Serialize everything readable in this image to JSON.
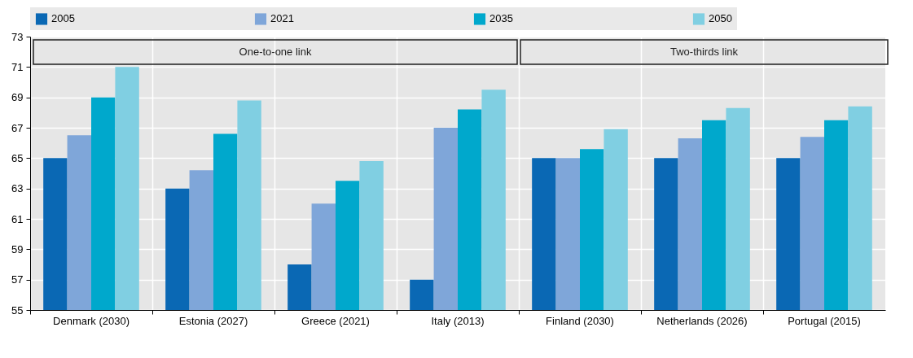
{
  "chart_data": {
    "type": "bar",
    "categories": [
      "Denmark (2030)",
      "Estonia (2027)",
      "Greece (2021)",
      "Italy (2013)",
      "Finland (2030)",
      "Netherlands (2026)",
      "Portugal (2015)"
    ],
    "series": [
      {
        "name": "2005",
        "color": "#0a68b4",
        "values": [
          65,
          63,
          58,
          57,
          65,
          65,
          65
        ]
      },
      {
        "name": "2021",
        "color": "#7fa6d9",
        "values": [
          66.5,
          64.2,
          62,
          67,
          65,
          66.3,
          66.4
        ]
      },
      {
        "name": "2035",
        "color": "#00a8cc",
        "values": [
          69,
          66.6,
          63.5,
          68.2,
          65.6,
          67.5,
          67.5
        ]
      },
      {
        "name": "2050",
        "color": "#80cfe2",
        "values": [
          71,
          68.8,
          64.8,
          69.5,
          66.9,
          68.3,
          68.4
        ]
      }
    ],
    "ylim": [
      55,
      73
    ],
    "yticks": [
      55,
      57,
      59,
      61,
      63,
      65,
      67,
      69,
      71,
      73
    ],
    "grid": true,
    "legend": "top",
    "annotations": [
      "One-to-one link",
      "Two-thirds link"
    ]
  }
}
